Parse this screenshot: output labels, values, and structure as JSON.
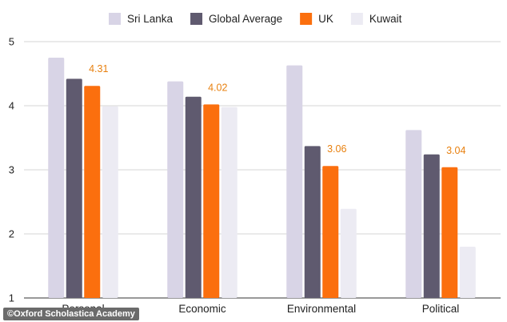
{
  "chart_data": {
    "type": "bar",
    "categories": [
      "Personal",
      "Economic",
      "Environmental",
      "Political"
    ],
    "series": [
      {
        "name": "Sri Lanka",
        "color": "#d8d4e6",
        "values": [
          4.75,
          4.38,
          4.63,
          3.62
        ]
      },
      {
        "name": "Global Average",
        "color": "#5f5a6f",
        "values": [
          4.42,
          4.14,
          3.37,
          3.24
        ]
      },
      {
        "name": "UK",
        "color": "#fb6f0e",
        "values": [
          4.31,
          4.02,
          3.06,
          3.04
        ],
        "data_labels": [
          "4.31",
          "4.02",
          "3.06",
          "3.04"
        ]
      },
      {
        "name": "Kuwait",
        "color": "#ecebf3",
        "values": [
          3.99,
          3.98,
          2.39,
          1.8
        ]
      }
    ],
    "ylim": [
      1,
      5
    ],
    "yticks": [
      "1",
      "2",
      "3",
      "4",
      "5"
    ],
    "grid": true,
    "legend_position": "top-center"
  },
  "watermark": "©Oxford Scholastica Academy"
}
